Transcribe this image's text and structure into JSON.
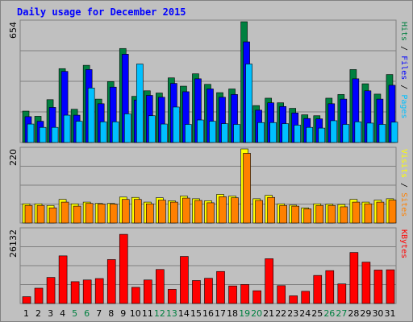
{
  "chart_data": {
    "type": "bar",
    "title": "Daily usage for December 2015",
    "colors": {
      "background": "#c0c0c0",
      "title": "#0000ff",
      "hits": "#008040",
      "files": "#0000ff",
      "pages": "#00c0ff",
      "visits": "#ffff00",
      "sites": "#ff8000",
      "kbytes": "#ff0000",
      "weekend": "#008040",
      "weekday": "#000000",
      "grid": "#808080"
    },
    "categories": [
      "1",
      "2",
      "3",
      "4",
      "5",
      "6",
      "7",
      "8",
      "9",
      "10",
      "11",
      "12",
      "13",
      "14",
      "15",
      "16",
      "17",
      "18",
      "19",
      "20",
      "21",
      "22",
      "23",
      "24",
      "25",
      "26",
      "27",
      "28",
      "29",
      "30",
      "31"
    ],
    "weekend_days": [
      5,
      6,
      12,
      13,
      19,
      20,
      26,
      27
    ],
    "panels": [
      {
        "id": "hits-files-pages",
        "ymax": 654,
        "ymax_label": "654",
        "side_label": [
          {
            "text": "Hits",
            "color": "#008040"
          },
          {
            "text": " / ",
            "color": "#000000"
          },
          {
            "text": "Files",
            "color": "#0000ff"
          },
          {
            "text": " / ",
            "color": "#000000"
          },
          {
            "text": "Pages",
            "color": "#00c0ff"
          }
        ],
        "series": [
          {
            "name": "Hits",
            "color": "#008040",
            "values": [
              170,
              142,
              232,
              400,
              180,
              418,
              235,
              330,
              509,
              250,
              280,
              268,
              350,
              305,
              372,
              315,
              270,
              290,
              654,
              200,
              240,
              215,
              185,
              150,
              145,
              240,
              260,
              395,
              318,
              262,
              368
            ]
          },
          {
            "name": "Files",
            "color": "#0000ff",
            "values": [
              140,
              115,
              190,
              385,
              148,
              395,
              210,
              300,
              478,
              230,
              255,
              245,
              320,
              275,
              345,
              290,
              245,
              260,
              545,
              175,
              215,
              195,
              160,
              130,
              128,
              210,
              235,
              345,
              280,
              235,
              310
            ]
          },
          {
            "name": "Pages",
            "color": "#00c0ff",
            "values": [
              100,
              82,
              82,
              148,
              115,
              295,
              112,
              112,
              155,
              425,
              145,
              100,
              192,
              98,
              122,
              115,
              102,
              98,
              425,
              108,
              108,
              102,
              94,
              82,
              78,
              118,
              98,
              112,
              105,
              98,
              110
            ]
          }
        ]
      },
      {
        "id": "visits-sites",
        "ymax": 220,
        "ymax_label": "220",
        "side_label": [
          {
            "text": "Visits",
            "color": "#ffff00"
          },
          {
            "text": " / ",
            "color": "#000000"
          },
          {
            "text": "Sites",
            "color": "#ff8000"
          }
        ],
        "series": [
          {
            "name": "Visits",
            "color": "#ffff00",
            "values": [
              57,
              57,
              52,
              70,
              57,
              62,
              58,
              58,
              77,
              76,
              62,
              75,
              66,
              80,
              72,
              66,
              85,
              80,
              220,
              72,
              82,
              57,
              53,
              45,
              57,
              56,
              55,
              70,
              62,
              68,
              72
            ]
          },
          {
            "name": "Sites",
            "color": "#ff8000",
            "values": [
              52,
              52,
              45,
              62,
              50,
              58,
              56,
              56,
              70,
              70,
              57,
              68,
              62,
              74,
              67,
              60,
              78,
              75,
              207,
              67,
              76,
              52,
              50,
              42,
              52,
              52,
              48,
              62,
              57,
              62,
              68
            ]
          }
        ]
      },
      {
        "id": "kbytes",
        "ymax": 26132,
        "ymax_label": "26132",
        "side_label": [
          {
            "text": "KBytes",
            "color": "#ff0000"
          }
        ],
        "series": [
          {
            "name": "KBytes",
            "color": "#ff0000",
            "values": [
              2400,
              5400,
              9200,
              16800,
              7700,
              8300,
              8800,
              15500,
              24400,
              5700,
              8300,
              12000,
              5000,
              16600,
              8100,
              8900,
              11300,
              6200,
              6700,
              4500,
              15800,
              6300,
              2700,
              4300,
              9900,
              11600,
              6900,
              18000,
              14600,
              11800,
              11900
            ]
          }
        ]
      }
    ]
  }
}
